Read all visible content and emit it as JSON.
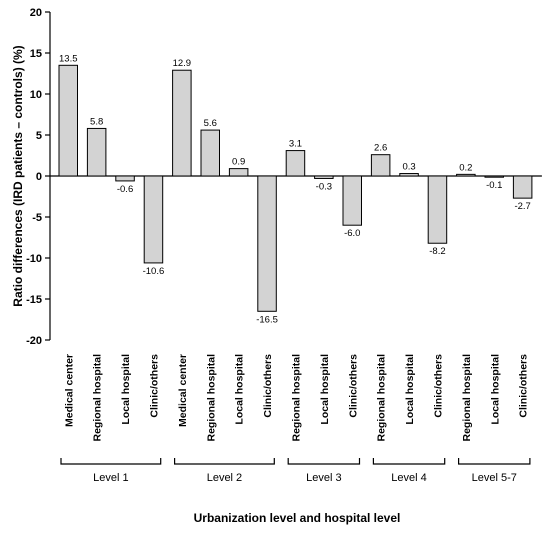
{
  "chart_data": {
    "type": "bar",
    "xlabel": "Urbanization level and hospital level",
    "ylabel": "Ratio differences (IRD patients – controls) (%)",
    "ylim": [
      -20,
      20
    ],
    "yticks": [
      -20,
      -15,
      -10,
      -5,
      0,
      5,
      10,
      15,
      20
    ],
    "groups": [
      {
        "name": "Level 1",
        "categories": [
          "Medical center",
          "Regional hospital",
          "Local hospital",
          "Clinic/others"
        ],
        "values": [
          13.5,
          5.8,
          -0.6,
          -10.6
        ],
        "labels": [
          "13.5",
          "5.8",
          "-0.6",
          "-10.6"
        ]
      },
      {
        "name": "Level 2",
        "categories": [
          "Medical center",
          "Regional hospital",
          "Local hospital",
          "Clinic/others"
        ],
        "values": [
          12.9,
          5.6,
          0.9,
          -16.5
        ],
        "labels": [
          "12.9",
          "5.6",
          "0.9",
          "-16.5"
        ]
      },
      {
        "name": "Level 3",
        "categories": [
          "Regional hospital",
          "Local hospital",
          "Clinic/others"
        ],
        "values": [
          3.1,
          -0.3,
          -6.0
        ],
        "labels": [
          "3.1",
          "-0.3",
          "-6.0"
        ]
      },
      {
        "name": "Level 4",
        "categories": [
          "Regional hospital",
          "Local hospital",
          "Clinic/others"
        ],
        "values": [
          2.6,
          0.3,
          -8.2
        ],
        "labels": [
          "2.6",
          "0.3",
          "-8.2"
        ]
      },
      {
        "name": "Level 5-7",
        "categories": [
          "Regional hospital",
          "Local hospital",
          "Clinic/others"
        ],
        "values": [
          0.2,
          -0.1,
          -2.7
        ],
        "labels": [
          "0.2",
          "-0.1",
          "-2.7"
        ]
      }
    ],
    "bar_color": "#d3d3d3",
    "grid": false,
    "legend": "none"
  }
}
